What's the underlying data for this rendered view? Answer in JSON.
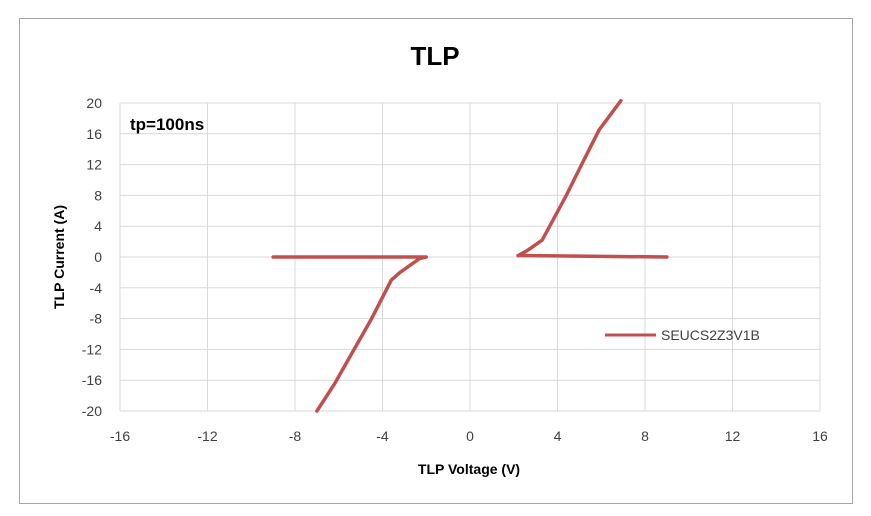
{
  "chart_data": {
    "type": "line",
    "title": "TLP",
    "xlabel": "TLP Voltage (V)",
    "ylabel": "TLP Current (A)",
    "annotation": "tp=100ns",
    "xlim": [
      -16,
      16
    ],
    "ylim": [
      -20,
      20
    ],
    "xticks": [
      -16,
      -12,
      -8,
      -4,
      0,
      4,
      8,
      12,
      16
    ],
    "yticks": [
      -20,
      -16,
      -12,
      -8,
      -4,
      0,
      4,
      8,
      12,
      16,
      20
    ],
    "grid": true,
    "legend_position": "right",
    "series": [
      {
        "name": "SEUCS2Z3V1B",
        "color": "#c0504d",
        "x": [
          -9,
          -2,
          -2.3,
          -3.2,
          -3.6,
          -4.5,
          -5.4,
          -6.2,
          -7
        ],
        "y": [
          0,
          0,
          -0.2,
          -2,
          -3,
          -8,
          -12.5,
          -16.5,
          -20
        ]
      },
      {
        "name": "SEUCS2Z3V1B",
        "color": "#c0504d",
        "x": [
          2.2,
          2.6,
          3.3,
          4.4,
          5.1,
          5.9,
          6.9
        ],
        "y": [
          0.2,
          0.8,
          2.2,
          8,
          12,
          16.5,
          20.3
        ]
      },
      {
        "name": "SEUCS2Z3V1B",
        "color": "#c0504d",
        "x": [
          2.2,
          9
        ],
        "y": [
          0.2,
          0
        ]
      }
    ]
  }
}
